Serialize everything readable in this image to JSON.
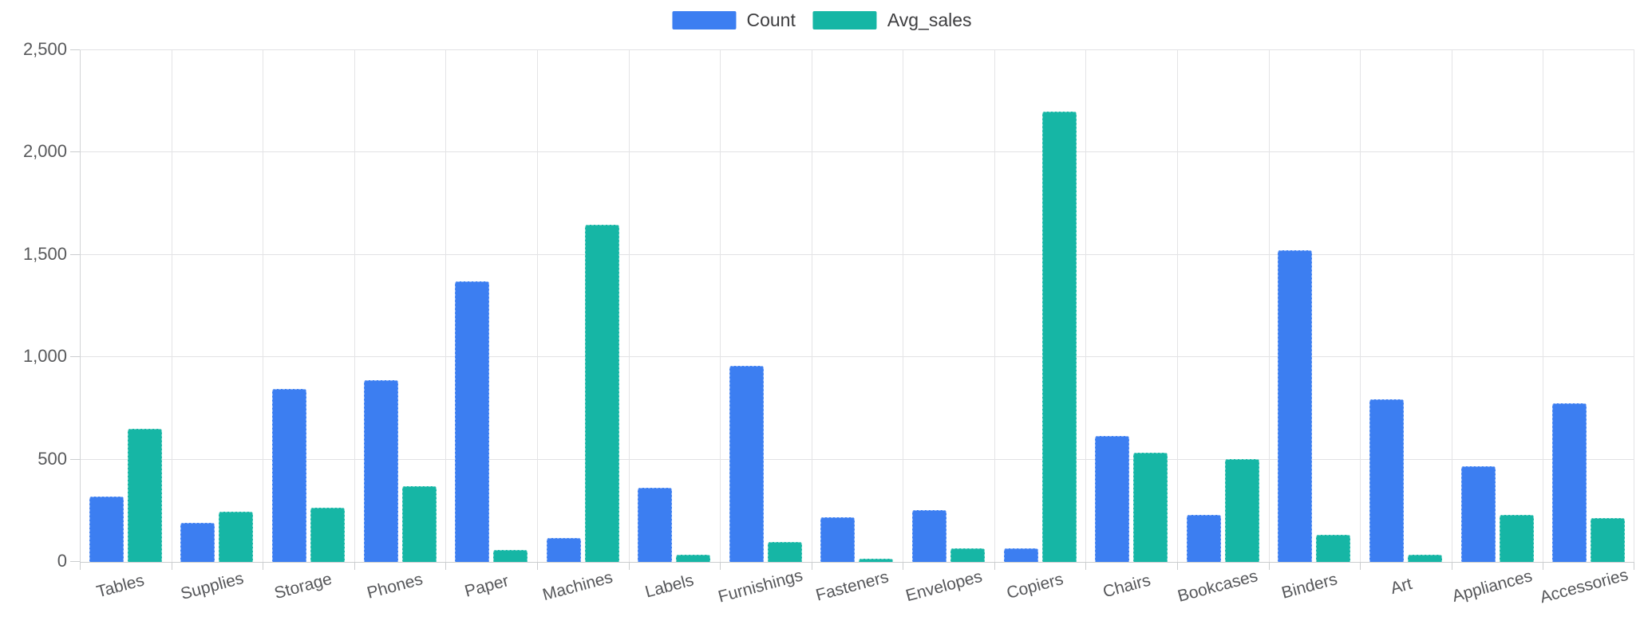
{
  "chart_data": {
    "type": "bar",
    "categories": [
      "Tables",
      "Supplies",
      "Storage",
      "Phones",
      "Paper",
      "Machines",
      "Labels",
      "Furnishings",
      "Fasteners",
      "Envelopes",
      "Copiers",
      "Chairs",
      "Bookcases",
      "Binders",
      "Art",
      "Appliances",
      "Accessories"
    ],
    "series": [
      {
        "name": "Count",
        "color": "#3C7EF1",
        "values": [
          319,
          190,
          846,
          889,
          1370,
          115,
          364,
          957,
          217,
          254,
          68,
          617,
          228,
          1523,
          796,
          466,
          775
        ]
      },
      {
        "name": "Avg_sales",
        "color": "#16B6A5",
        "values": [
          648.8,
          245.65,
          264.59,
          371.21,
          57.28,
          1645.55,
          34.3,
          95.83,
          13.94,
          64.87,
          2198.94,
          532.33,
          503.86,
          133.56,
          34.07,
          230.76,
          215.97
        ]
      }
    ],
    "xlabel": "",
    "ylabel": "",
    "ylim": [
      0,
      2500
    ],
    "y_ticks": [
      0,
      500,
      1000,
      1500,
      2000,
      2500
    ],
    "y_tick_labels": [
      "0",
      "500",
      "1,000",
      "1,500",
      "2,000",
      "2,500"
    ],
    "grid": true,
    "legend_position": "top-center"
  },
  "colors": {
    "count_bar": "#3C7EF1",
    "avg_sales_bar": "#16B6A5",
    "gridline": "#E2E2E4",
    "axis_line": "#CBCDCF",
    "axis_text": "#58595B",
    "legend_text": "#3E3E40",
    "background": "#FFFFFF"
  }
}
